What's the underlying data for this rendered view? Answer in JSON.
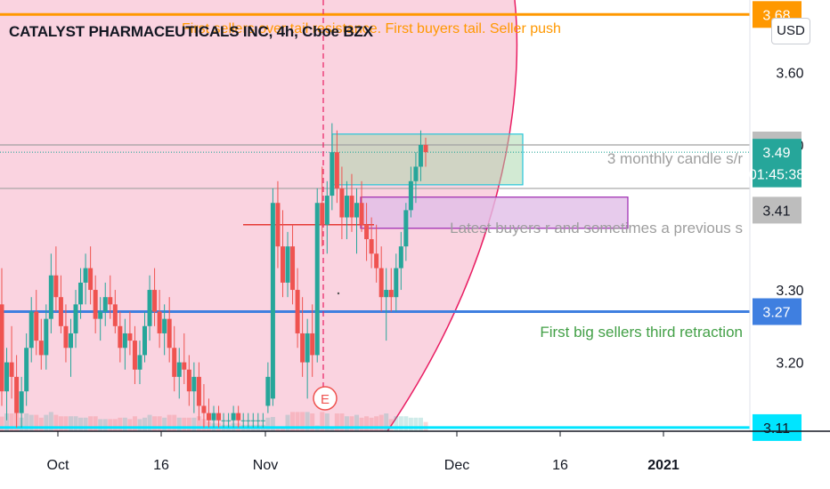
{
  "header": {
    "title": "CATALYST PHARMACEUTICALS INC, 4h, Cboe BZX",
    "currency": "USD"
  },
  "colors": {
    "up": "#26a69a",
    "down": "#ef5350",
    "zone_bg": "#f8bbd0",
    "zone_edge": "#e91e63",
    "orange": "#ff9800",
    "blue": "#3f7fe0",
    "cyan": "#00e5ff",
    "green_note": "#43a047",
    "gray_note": "#9e9e9e",
    "purple": "#9c27b0",
    "teal_tag": "#26a69a",
    "gray_tag": "#bdbdbd"
  },
  "chart_data": {
    "type": "candlestick",
    "title": "CATALYST PHARMACEUTICALS INC, 4h, Cboe BZX",
    "x_axis": {
      "ticks": [
        "Oct",
        "16",
        "Nov",
        "Dec",
        "16",
        "2021"
      ]
    },
    "y_axis": {
      "ticks": [
        "3.60",
        "3.50",
        "3.30",
        "3.20"
      ],
      "range": [
        3.105,
        3.7
      ]
    },
    "price_tags": [
      {
        "label": "3.68",
        "value": 3.68,
        "color": "orange"
      },
      {
        "label": "3.50",
        "value": 3.5,
        "color": "gray"
      },
      {
        "label": "3.49",
        "value": 3.49,
        "color": "teal"
      },
      {
        "label": "01:45:38",
        "value": 3.46,
        "color": "teal"
      },
      {
        "label": "3.41",
        "value": 3.41,
        "color": "gray"
      },
      {
        "label": "3.27",
        "value": 3.27,
        "color": "blue"
      },
      {
        "label": "3.11",
        "value": 3.11,
        "color": "cyan"
      }
    ],
    "horizontal_lines": [
      {
        "value": 3.68,
        "color": "orange",
        "style": "solid"
      },
      {
        "value": 3.5,
        "color": "gray",
        "style": "solid"
      },
      {
        "value": 3.49,
        "color": "teal",
        "style": "dotted"
      },
      {
        "value": 3.44,
        "color": "gray",
        "style": "solid"
      },
      {
        "value": 3.27,
        "color": "blue",
        "style": "solid"
      },
      {
        "value": 3.11,
        "color": "cyan",
        "style": "solid"
      }
    ],
    "annotations": [
      {
        "text": "First sellers over tail resistance. First buyers tail. Seller push",
        "color": "orange"
      },
      {
        "text": "3 monthly candle s/r",
        "color": "gray"
      },
      {
        "text": "Latest buyers r and sometimes a previous s",
        "color": "gray"
      },
      {
        "text": "First big sellers third retraction",
        "color": "green"
      }
    ],
    "event_marker": "E",
    "candles": [
      {
        "o": 3.28,
        "h": 3.33,
        "l": 3.14,
        "c": 3.16
      },
      {
        "o": 3.16,
        "h": 3.22,
        "l": 3.12,
        "c": 3.2
      },
      {
        "o": 3.2,
        "h": 3.25,
        "l": 3.15,
        "c": 3.18
      },
      {
        "o": 3.18,
        "h": 3.21,
        "l": 3.11,
        "c": 3.13
      },
      {
        "o": 3.13,
        "h": 3.18,
        "l": 3.11,
        "c": 3.16
      },
      {
        "o": 3.16,
        "h": 3.24,
        "l": 3.14,
        "c": 3.22
      },
      {
        "o": 3.22,
        "h": 3.29,
        "l": 3.2,
        "c": 3.27
      },
      {
        "o": 3.27,
        "h": 3.3,
        "l": 3.21,
        "c": 3.23
      },
      {
        "o": 3.23,
        "h": 3.26,
        "l": 3.19,
        "c": 3.21
      },
      {
        "o": 3.21,
        "h": 3.28,
        "l": 3.19,
        "c": 3.26
      },
      {
        "o": 3.26,
        "h": 3.35,
        "l": 3.24,
        "c": 3.32
      },
      {
        "o": 3.32,
        "h": 3.36,
        "l": 3.27,
        "c": 3.29
      },
      {
        "o": 3.29,
        "h": 3.32,
        "l": 3.24,
        "c": 3.25
      },
      {
        "o": 3.25,
        "h": 3.28,
        "l": 3.2,
        "c": 3.22
      },
      {
        "o": 3.22,
        "h": 3.26,
        "l": 3.18,
        "c": 3.24
      },
      {
        "o": 3.24,
        "h": 3.3,
        "l": 3.22,
        "c": 3.28
      },
      {
        "o": 3.28,
        "h": 3.33,
        "l": 3.26,
        "c": 3.31
      },
      {
        "o": 3.31,
        "h": 3.35,
        "l": 3.28,
        "c": 3.33
      },
      {
        "o": 3.33,
        "h": 3.36,
        "l": 3.28,
        "c": 3.3
      },
      {
        "o": 3.3,
        "h": 3.32,
        "l": 3.24,
        "c": 3.26
      },
      {
        "o": 3.26,
        "h": 3.29,
        "l": 3.23,
        "c": 3.27
      },
      {
        "o": 3.27,
        "h": 3.31,
        "l": 3.25,
        "c": 3.29
      },
      {
        "o": 3.29,
        "h": 3.32,
        "l": 3.26,
        "c": 3.28
      },
      {
        "o": 3.28,
        "h": 3.3,
        "l": 3.24,
        "c": 3.25
      },
      {
        "o": 3.25,
        "h": 3.27,
        "l": 3.2,
        "c": 3.22
      },
      {
        "o": 3.22,
        "h": 3.26,
        "l": 3.19,
        "c": 3.24
      },
      {
        "o": 3.24,
        "h": 3.27,
        "l": 3.21,
        "c": 3.23
      },
      {
        "o": 3.23,
        "h": 3.25,
        "l": 3.17,
        "c": 3.19
      },
      {
        "o": 3.19,
        "h": 3.23,
        "l": 3.17,
        "c": 3.21
      },
      {
        "o": 3.21,
        "h": 3.27,
        "l": 3.2,
        "c": 3.25
      },
      {
        "o": 3.25,
        "h": 3.32,
        "l": 3.23,
        "c": 3.3
      },
      {
        "o": 3.3,
        "h": 3.33,
        "l": 3.25,
        "c": 3.27
      },
      {
        "o": 3.27,
        "h": 3.3,
        "l": 3.22,
        "c": 3.24
      },
      {
        "o": 3.24,
        "h": 3.28,
        "l": 3.21,
        "c": 3.26
      },
      {
        "o": 3.26,
        "h": 3.29,
        "l": 3.2,
        "c": 3.22
      },
      {
        "o": 3.22,
        "h": 3.25,
        "l": 3.16,
        "c": 3.18
      },
      {
        "o": 3.18,
        "h": 3.22,
        "l": 3.15,
        "c": 3.2
      },
      {
        "o": 3.2,
        "h": 3.24,
        "l": 3.17,
        "c": 3.19
      },
      {
        "o": 3.19,
        "h": 3.21,
        "l": 3.14,
        "c": 3.16
      },
      {
        "o": 3.16,
        "h": 3.2,
        "l": 3.13,
        "c": 3.18
      },
      {
        "o": 3.18,
        "h": 3.2,
        "l": 3.12,
        "c": 3.14
      },
      {
        "o": 3.14,
        "h": 3.17,
        "l": 3.11,
        "c": 3.13
      },
      {
        "o": 3.13,
        "h": 3.15,
        "l": 3.11,
        "c": 3.12
      },
      {
        "o": 3.12,
        "h": 3.14,
        "l": 3.11,
        "c": 3.13
      },
      {
        "o": 3.13,
        "h": 3.14,
        "l": 3.11,
        "c": 3.12
      },
      {
        "o": 3.12,
        "h": 3.13,
        "l": 3.11,
        "c": 3.12
      },
      {
        "o": 3.12,
        "h": 3.13,
        "l": 3.11,
        "c": 3.12
      },
      {
        "o": 3.12,
        "h": 3.14,
        "l": 3.11,
        "c": 3.13
      },
      {
        "o": 3.13,
        "h": 3.14,
        "l": 3.11,
        "c": 3.12
      },
      {
        "o": 3.12,
        "h": 3.13,
        "l": 3.11,
        "c": 3.12
      },
      {
        "o": 3.12,
        "h": 3.13,
        "l": 3.11,
        "c": 3.12
      },
      {
        "o": 3.12,
        "h": 3.13,
        "l": 3.11,
        "c": 3.12
      },
      {
        "o": 3.12,
        "h": 3.13,
        "l": 3.11,
        "c": 3.12
      },
      {
        "o": 3.12,
        "h": 3.13,
        "l": 3.11,
        "c": 3.12
      },
      {
        "o": 3.14,
        "h": 3.2,
        "l": 3.13,
        "c": 3.18
      },
      {
        "o": 3.15,
        "h": 3.44,
        "l": 3.14,
        "c": 3.42
      },
      {
        "o": 3.42,
        "h": 3.45,
        "l": 3.33,
        "c": 3.36
      },
      {
        "o": 3.36,
        "h": 3.41,
        "l": 3.29,
        "c": 3.31
      },
      {
        "o": 3.31,
        "h": 3.38,
        "l": 3.29,
        "c": 3.36
      },
      {
        "o": 3.36,
        "h": 3.39,
        "l": 3.28,
        "c": 3.3
      },
      {
        "o": 3.3,
        "h": 3.33,
        "l": 3.22,
        "c": 3.24
      },
      {
        "o": 3.24,
        "h": 3.29,
        "l": 3.18,
        "c": 3.2
      },
      {
        "o": 3.2,
        "h": 3.26,
        "l": 3.15,
        "c": 3.24
      },
      {
        "o": 3.24,
        "h": 3.28,
        "l": 3.18,
        "c": 3.21
      },
      {
        "o": 3.21,
        "h": 3.44,
        "l": 3.2,
        "c": 3.42
      },
      {
        "o": 3.42,
        "h": 3.47,
        "l": 3.36,
        "c": 3.39
      },
      {
        "o": 3.39,
        "h": 3.45,
        "l": 3.35,
        "c": 3.43
      },
      {
        "o": 3.43,
        "h": 3.53,
        "l": 3.41,
        "c": 3.49
      },
      {
        "o": 3.49,
        "h": 3.52,
        "l": 3.42,
        "c": 3.44
      },
      {
        "o": 3.44,
        "h": 3.47,
        "l": 3.37,
        "c": 3.4
      },
      {
        "o": 3.4,
        "h": 3.45,
        "l": 3.37,
        "c": 3.43
      },
      {
        "o": 3.43,
        "h": 3.46,
        "l": 3.38,
        "c": 3.4
      },
      {
        "o": 3.4,
        "h": 3.44,
        "l": 3.35,
        "c": 3.42
      },
      {
        "o": 3.42,
        "h": 3.45,
        "l": 3.38,
        "c": 3.39
      },
      {
        "o": 3.39,
        "h": 3.42,
        "l": 3.34,
        "c": 3.37
      },
      {
        "o": 3.37,
        "h": 3.4,
        "l": 3.33,
        "c": 3.35
      },
      {
        "o": 3.35,
        "h": 3.39,
        "l": 3.31,
        "c": 3.33
      },
      {
        "o": 3.33,
        "h": 3.36,
        "l": 3.27,
        "c": 3.29
      },
      {
        "o": 3.29,
        "h": 3.33,
        "l": 3.23,
        "c": 3.3
      },
      {
        "o": 3.3,
        "h": 3.33,
        "l": 3.27,
        "c": 3.29
      },
      {
        "o": 3.29,
        "h": 3.35,
        "l": 3.27,
        "c": 3.33
      },
      {
        "o": 3.33,
        "h": 3.38,
        "l": 3.3,
        "c": 3.36
      },
      {
        "o": 3.36,
        "h": 3.42,
        "l": 3.34,
        "c": 3.41
      },
      {
        "o": 3.41,
        "h": 3.47,
        "l": 3.4,
        "c": 3.45
      },
      {
        "o": 3.45,
        "h": 3.49,
        "l": 3.42,
        "c": 3.47
      },
      {
        "o": 3.47,
        "h": 3.52,
        "l": 3.45,
        "c": 3.5
      },
      {
        "o": 3.5,
        "h": 3.51,
        "l": 3.47,
        "c": 3.49
      }
    ]
  }
}
